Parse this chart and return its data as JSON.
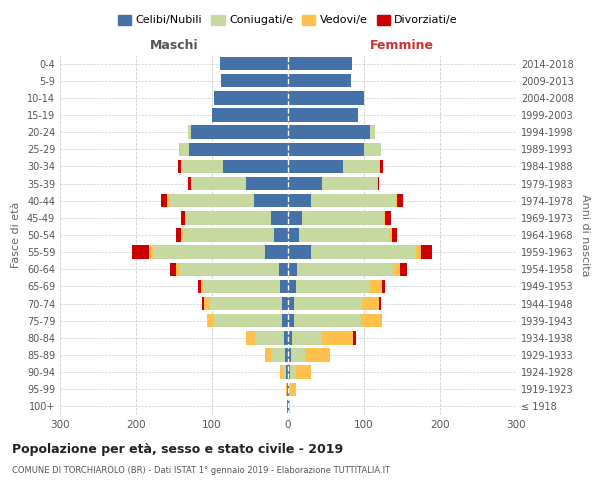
{
  "age_groups": [
    "100+",
    "95-99",
    "90-94",
    "85-89",
    "80-84",
    "75-79",
    "70-74",
    "65-69",
    "60-64",
    "55-59",
    "50-54",
    "45-49",
    "40-44",
    "35-39",
    "30-34",
    "25-29",
    "20-24",
    "15-19",
    "10-14",
    "5-9",
    "0-4"
  ],
  "birth_years": [
    "≤ 1918",
    "1919-1923",
    "1924-1928",
    "1929-1933",
    "1934-1938",
    "1939-1943",
    "1944-1948",
    "1949-1953",
    "1954-1958",
    "1959-1963",
    "1964-1968",
    "1969-1973",
    "1974-1978",
    "1979-1983",
    "1984-1988",
    "1989-1993",
    "1994-1998",
    "1999-2003",
    "2004-2008",
    "2009-2013",
    "2014-2018"
  ],
  "males": {
    "celibi": [
      1,
      1,
      2,
      4,
      5,
      8,
      8,
      10,
      12,
      30,
      18,
      22,
      45,
      55,
      85,
      130,
      128,
      100,
      98,
      88,
      90
    ],
    "coniugati": [
      0,
      0,
      4,
      18,
      38,
      90,
      95,
      100,
      130,
      148,
      120,
      112,
      112,
      72,
      55,
      12,
      4,
      0,
      0,
      0,
      0
    ],
    "vedovi": [
      0,
      1,
      4,
      8,
      12,
      8,
      8,
      5,
      5,
      5,
      3,
      2,
      2,
      1,
      1,
      1,
      0,
      0,
      0,
      0,
      0
    ],
    "divorziati": [
      0,
      0,
      0,
      0,
      0,
      0,
      2,
      4,
      8,
      22,
      7,
      5,
      8,
      3,
      4,
      0,
      0,
      0,
      0,
      0,
      0
    ]
  },
  "females": {
    "nubili": [
      1,
      1,
      2,
      4,
      5,
      8,
      8,
      10,
      12,
      30,
      15,
      18,
      30,
      45,
      72,
      100,
      108,
      92,
      100,
      83,
      84
    ],
    "coniugate": [
      0,
      1,
      8,
      18,
      38,
      88,
      90,
      98,
      128,
      138,
      118,
      108,
      112,
      72,
      48,
      22,
      7,
      0,
      0,
      0,
      0
    ],
    "vedove": [
      1,
      8,
      20,
      33,
      42,
      28,
      22,
      16,
      8,
      7,
      4,
      2,
      2,
      1,
      1,
      0,
      0,
      0,
      0,
      0,
      0
    ],
    "divorziate": [
      0,
      0,
      0,
      0,
      4,
      0,
      2,
      3,
      8,
      14,
      7,
      7,
      7,
      2,
      4,
      0,
      0,
      0,
      0,
      0,
      0
    ]
  },
  "colors": {
    "celibi": "#4472a8",
    "coniugati": "#c5d9a0",
    "vedovi": "#ffc04c",
    "divorziati": "#cc0000"
  },
  "title": "Popolazione per età, sesso e stato civile - 2019",
  "subtitle": "COMUNE DI TORCHIAROLO (BR) - Dati ISTAT 1° gennaio 2019 - Elaborazione TUTTITALIA.IT",
  "ylabel_left": "Fasce di età",
  "ylabel_right": "Anni di nascita",
  "xlim": 300,
  "legend_labels": [
    "Celibi/Nubili",
    "Coniugati/e",
    "Vedovi/e",
    "Divorziati/e"
  ],
  "maschi_label": "Maschi",
  "femmine_label": "Femmine",
  "bg_color": "#ffffff",
  "grid_color": "#cccccc",
  "text_color_dark": "#222222",
  "text_color_mid": "#555555",
  "text_color_maschi": "#555555",
  "text_color_femmine": "#cc3333"
}
